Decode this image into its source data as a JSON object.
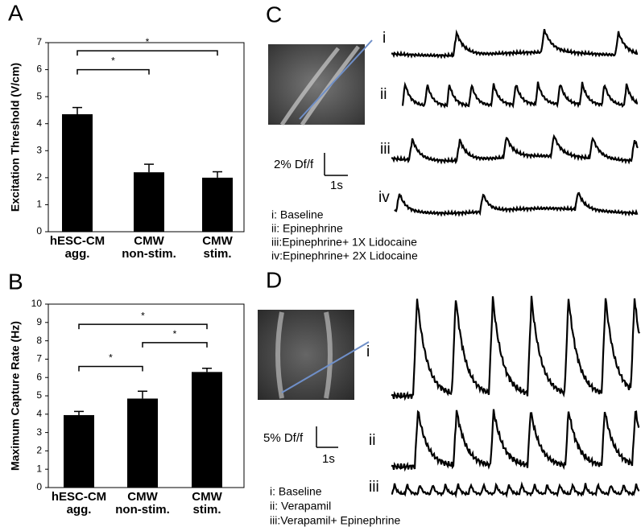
{
  "chart_data": [
    {
      "type": "bar",
      "panel_label": "A",
      "y_label": "Excitation Threshold (V/cm)",
      "categories": [
        [
          "hESC-CM",
          "agg."
        ],
        [
          "CMW",
          "non-stim."
        ],
        [
          "CMW",
          "stim."
        ]
      ],
      "values": [
        4.35,
        2.2,
        2.0
      ],
      "errors": [
        0.25,
        0.3,
        0.22
      ],
      "color": "#000000",
      "ylim": [
        0,
        7
      ],
      "yticks": [
        0,
        1,
        2,
        3,
        4,
        5,
        6,
        7
      ],
      "annotations": [
        "*",
        "*"
      ]
    },
    {
      "type": "bar",
      "panel_label": "B",
      "y_label": "Maximum Capture Rate (Hz)",
      "categories": [
        [
          "hESC-CM",
          "agg."
        ],
        [
          "CMW",
          "non-stim."
        ],
        [
          "CMW",
          "stim."
        ]
      ],
      "values": [
        3.95,
        4.85,
        6.3
      ],
      "errors": [
        0.2,
        0.4,
        0.2
      ],
      "color": "#000000",
      "ylim": [
        0,
        10
      ],
      "yticks": [
        0,
        1,
        2,
        3,
        4,
        5,
        6,
        7,
        8,
        9,
        10
      ],
      "annotations": [
        "*",
        "*",
        "*"
      ]
    }
  ],
  "panels": [
    {
      "label": "C",
      "traces": [
        "i",
        "ii",
        "iii",
        "iv"
      ],
      "scale": [
        "2% Df/f",
        "1s"
      ],
      "legend": [
        "i:  Baseline",
        "ii:  Epinephrine",
        "iii:Epinephrine+ 1X Lidocaine",
        "iv:Epinephrine+ 2X Lidocaine"
      ]
    },
    {
      "label": "D",
      "traces": [
        "i",
        "ii",
        "iii"
      ],
      "scale": [
        "5% Df/f",
        "1s"
      ],
      "legend": [
        "i:  Baseline",
        "ii:  Verapamil",
        "iii:Verapamil+ Epinephrine"
      ]
    }
  ]
}
